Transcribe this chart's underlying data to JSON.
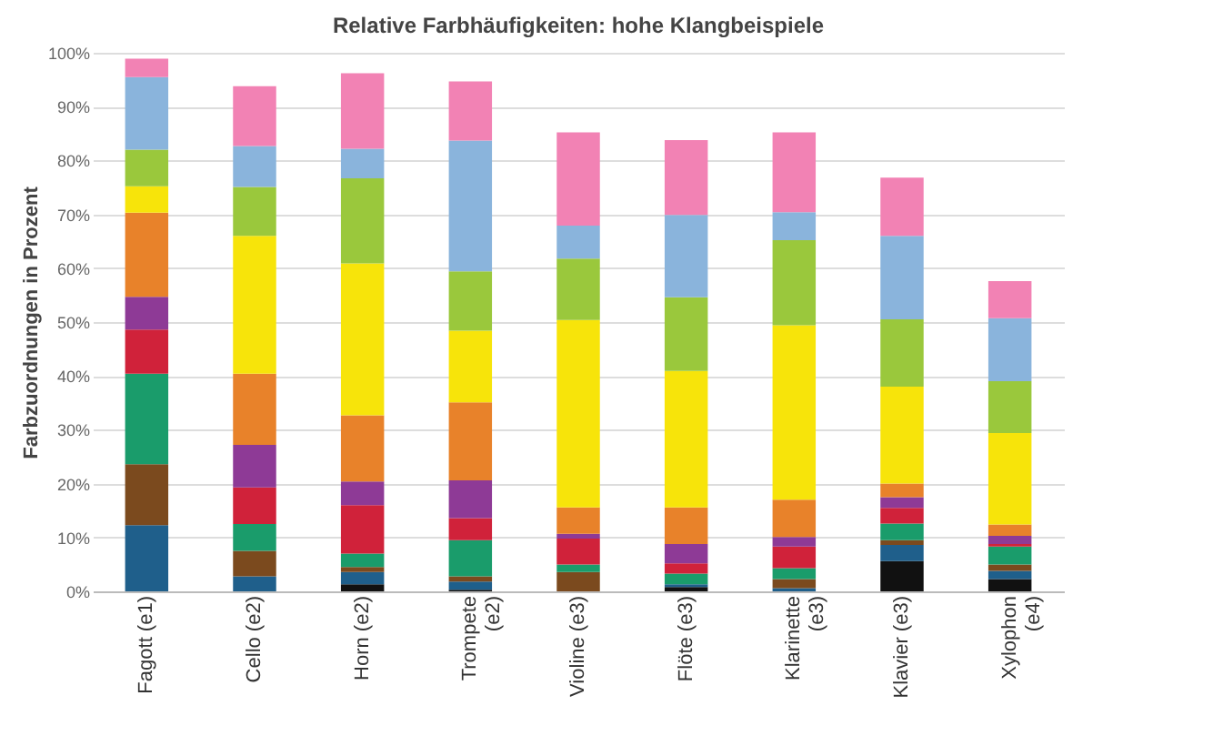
{
  "chart_data": {
    "type": "bar",
    "stacked": true,
    "title": "Relative Farbhäufigkeiten: hohe Klangbeispiele",
    "ylabel": "Farbzuordnungen in Prozent",
    "categories": [
      "Fagott (e1)",
      "Cello (e2)",
      "Horn (e2)",
      "Trompete (e2)",
      "Violine (e3)",
      "Flöte (e3)",
      "Klarinette (e3)",
      "Klavier (e3)",
      "Xylophon (e4)"
    ],
    "ylim": [
      0,
      100
    ],
    "yticks": [
      {
        "value": 0,
        "label": "0%"
      },
      {
        "value": 10,
        "label": "10%"
      },
      {
        "value": 20,
        "label": "20%"
      },
      {
        "value": 30,
        "label": "30%"
      },
      {
        "value": 40,
        "label": "40%"
      },
      {
        "value": 50,
        "label": "50%"
      },
      {
        "value": 60,
        "label": "60%"
      },
      {
        "value": 70,
        "label": "70%"
      },
      {
        "value": 80,
        "label": "80%"
      },
      {
        "value": 90,
        "label": "90%"
      },
      {
        "value": 100,
        "label": "100%"
      }
    ],
    "grid": "y",
    "legend": false,
    "series": [
      {
        "color": "#111111",
        "values": [
          0,
          0,
          1.3,
          0.3,
          0,
          0.8,
          0,
          5.6,
          2.3
        ]
      },
      {
        "color": "#1f5f8b",
        "values": [
          12.3,
          2.8,
          2.3,
          1.5,
          0,
          0.5,
          0.6,
          3.0,
          1.5
        ]
      },
      {
        "color": "#7b4a1e",
        "values": [
          11.3,
          4.7,
          0.9,
          1.0,
          3.6,
          0,
          1.7,
          0.9,
          1.2
        ]
      },
      {
        "color": "#1a9c6b",
        "values": [
          16.8,
          5.0,
          2.5,
          6.7,
          1.4,
          2.0,
          2.0,
          3.1,
          3.3
        ]
      },
      {
        "color": "#d0223a",
        "values": [
          8.2,
          6.8,
          9.0,
          4.1,
          4.8,
          1.9,
          4.0,
          2.9,
          0.5
        ]
      },
      {
        "color": "#8e3a96",
        "values": [
          6.1,
          7.9,
          4.4,
          7.0,
          0.9,
          3.6,
          1.8,
          2.0,
          1.5
        ]
      },
      {
        "color": "#e8822a",
        "values": [
          15.6,
          13.2,
          12.3,
          14.5,
          4.9,
          6.8,
          6.9,
          2.5,
          2.1
        ]
      },
      {
        "color": "#f7e40a",
        "values": [
          4.9,
          25.6,
          28.2,
          13.3,
          34.8,
          25.3,
          32.4,
          18.0,
          17.0
        ]
      },
      {
        "color": "#9ac83c",
        "values": [
          6.8,
          9.1,
          15.8,
          11.0,
          11.4,
          13.7,
          15.8,
          12.5,
          9.6
        ]
      },
      {
        "color": "#8ab4dc",
        "values": [
          13.5,
          7.6,
          5.5,
          24.3,
          6.1,
          15.3,
          5.2,
          15.5,
          11.7
        ]
      },
      {
        "color": "#f282b4",
        "values": [
          3.4,
          11.1,
          14.0,
          11.0,
          17.3,
          13.9,
          14.8,
          10.8,
          6.9
        ]
      }
    ]
  }
}
